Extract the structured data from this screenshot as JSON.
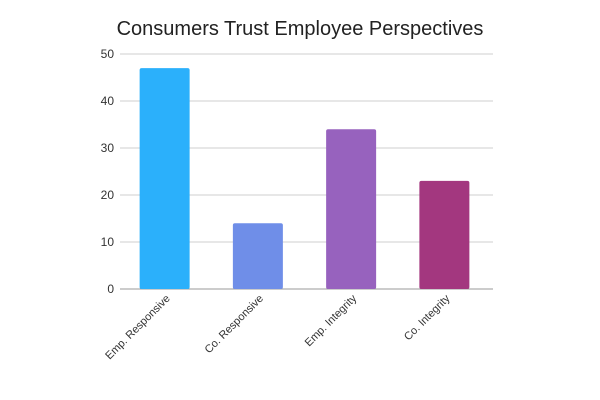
{
  "chart_data": {
    "type": "bar",
    "title": "Consumers Trust Employee Perspectives",
    "xlabel": "",
    "ylabel": "",
    "categories": [
      "Emp. Responsive",
      "Co. Responsive",
      "Emp. Integrity",
      "Co. Integrity"
    ],
    "values": [
      47,
      14,
      34,
      23
    ],
    "colors": [
      "#2bb0fb",
      "#6f8ee8",
      "#9762be",
      "#a3377f"
    ],
    "ylim": [
      0,
      50
    ],
    "yticks": [
      0,
      10,
      20,
      30,
      40,
      50
    ],
    "grid": true,
    "legend": "none"
  }
}
